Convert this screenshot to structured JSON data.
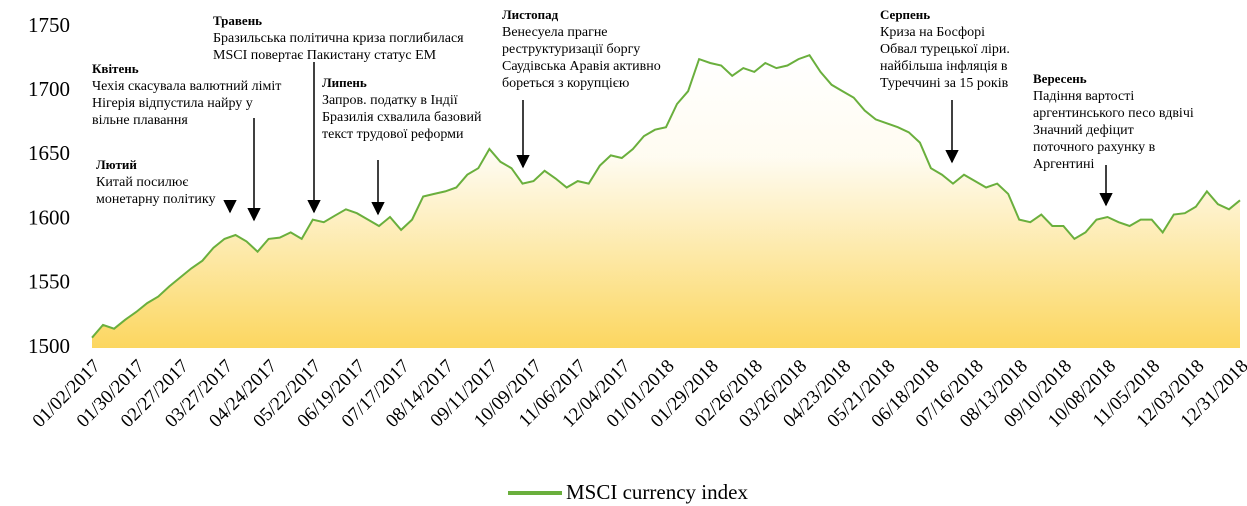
{
  "chart_data": {
    "type": "area",
    "xlim": [
      "01/02/2017",
      "12/31/2018"
    ],
    "xticks": [
      "01/02/2017",
      "01/30/2017",
      "02/27/2017",
      "03/27/2017",
      "04/24/2017",
      "05/22/2017",
      "06/19/2017",
      "07/17/2017",
      "08/14/2017",
      "09/11/2017",
      "10/09/2017",
      "11/06/2017",
      "12/04/2017",
      "01/01/2018",
      "01/29/2018",
      "02/26/2018",
      "03/26/2018",
      "04/23/2018",
      "05/21/2018",
      "06/18/2018",
      "07/16/2018",
      "08/13/2018",
      "09/10/2018",
      "10/08/2018",
      "11/05/2018",
      "12/03/2018",
      "12/31/2018"
    ],
    "ylim": [
      1500,
      1750
    ],
    "yticks": [
      1500,
      1550,
      1600,
      1650,
      1700,
      1750
    ],
    "x": [
      "01/02/2017",
      "01/09/2017",
      "01/16/2017",
      "01/23/2017",
      "01/30/2017",
      "02/06/2017",
      "02/13/2017",
      "02/20/2017",
      "02/27/2017",
      "03/06/2017",
      "03/13/2017",
      "03/20/2017",
      "03/27/2017",
      "04/03/2017",
      "04/10/2017",
      "04/17/2017",
      "04/24/2017",
      "05/01/2017",
      "05/08/2017",
      "05/15/2017",
      "05/22/2017",
      "05/29/2017",
      "06/05/2017",
      "06/12/2017",
      "06/19/2017",
      "06/26/2017",
      "07/03/2017",
      "07/10/2017",
      "07/17/2017",
      "07/24/2017",
      "07/31/2017",
      "08/07/2017",
      "08/14/2017",
      "08/21/2017",
      "08/28/2017",
      "09/04/2017",
      "09/11/2017",
      "09/18/2017",
      "09/25/2017",
      "10/02/2017",
      "10/09/2017",
      "10/16/2017",
      "10/23/2017",
      "10/30/2017",
      "11/06/2017",
      "11/13/2017",
      "11/20/2017",
      "11/27/2017",
      "12/04/2017",
      "12/11/2017",
      "12/18/2017",
      "12/25/2017",
      "01/01/2018",
      "01/08/2018",
      "01/15/2018",
      "01/22/2018",
      "01/29/2018",
      "02/05/2018",
      "02/12/2018",
      "02/19/2018",
      "02/26/2018",
      "03/05/2018",
      "03/12/2018",
      "03/19/2018",
      "03/26/2018",
      "04/02/2018",
      "04/09/2018",
      "04/16/2018",
      "04/23/2018",
      "04/30/2018",
      "05/07/2018",
      "05/14/2018",
      "05/21/2018",
      "05/28/2018",
      "06/04/2018",
      "06/11/2018",
      "06/18/2018",
      "06/25/2018",
      "07/02/2018",
      "07/09/2018",
      "07/16/2018",
      "07/23/2018",
      "07/30/2018",
      "08/06/2018",
      "08/13/2018",
      "08/20/2018",
      "08/27/2018",
      "09/03/2018",
      "09/10/2018",
      "09/17/2018",
      "09/24/2018",
      "10/01/2018",
      "10/08/2018",
      "10/15/2018",
      "10/22/2018",
      "10/29/2018",
      "11/05/2018",
      "11/12/2018",
      "11/19/2018",
      "11/26/2018",
      "12/03/2018",
      "12/10/2018",
      "12/17/2018",
      "12/24/2018",
      "12/31/2018"
    ],
    "series": [
      {
        "name": "MSCI currency index",
        "color": "#6aaf3d",
        "fill": "#fbd24e",
        "values": [
          1508,
          1518,
          1515,
          1522,
          1528,
          1535,
          1540,
          1548,
          1555,
          1562,
          1568,
          1578,
          1585,
          1588,
          1583,
          1575,
          1585,
          1586,
          1590,
          1585,
          1600,
          1598,
          1603,
          1608,
          1605,
          1600,
          1595,
          1602,
          1592,
          1600,
          1618,
          1620,
          1622,
          1625,
          1635,
          1640,
          1655,
          1645,
          1640,
          1628,
          1630,
          1638,
          1632,
          1625,
          1630,
          1628,
          1642,
          1650,
          1648,
          1655,
          1665,
          1670,
          1672,
          1690,
          1700,
          1725,
          1722,
          1720,
          1712,
          1718,
          1715,
          1722,
          1718,
          1720,
          1725,
          1728,
          1715,
          1705,
          1700,
          1695,
          1685,
          1678,
          1675,
          1672,
          1668,
          1660,
          1640,
          1635,
          1628,
          1635,
          1630,
          1625,
          1628,
          1620,
          1600,
          1598,
          1604,
          1595,
          1595,
          1585,
          1590,
          1600,
          1602,
          1598,
          1595,
          1600,
          1600,
          1590,
          1604,
          1605,
          1610,
          1622,
          1612,
          1608,
          1615
        ]
      }
    ],
    "annotations": [
      {
        "title": "Лютий",
        "text": [
          "Китай посилює",
          "монетарну політику"
        ]
      },
      {
        "title": "Квітень",
        "text": [
          "Чехія скасувала валютний ліміт",
          "Нігерія відпустила найру у",
          "вільне плавання"
        ]
      },
      {
        "title": "Травень",
        "text": [
          "Бразильська політична криза поглибилася",
          "MSCI повертає Пакистану статус EM"
        ]
      },
      {
        "title": "Липень",
        "text": [
          "Запров. податку в Індії",
          "Бразилія схвалила базовий",
          "текст трудової реформи"
        ]
      },
      {
        "title": "Листопад",
        "text": [
          "Венесуела прагне",
          "реструктуризації боргу",
          "Саудівська Аравія активно",
          "бореться з корупцією"
        ]
      },
      {
        "title": "Серпень",
        "text": [
          "Криза на Босфорі",
          "Обвал турецької ліри.",
          "найбільша інфляція в",
          "Туреччині за 15 років"
        ]
      },
      {
        "title": "Вересень",
        "text": [
          "Падіння вартості",
          "аргентинського песо вдвічі",
          "Значний дефіцит",
          "поточного рахунку в",
          "Аргентині"
        ]
      }
    ]
  }
}
